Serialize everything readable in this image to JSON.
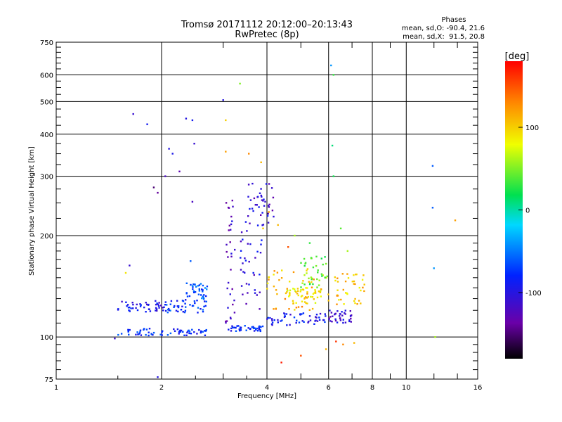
{
  "chart_data": {
    "type": "scatter",
    "title": "Tromsø 20171112 20:12:00–20:13:43",
    "subtitle": "RwPretec (8p)",
    "xlabel": "Frequency [MHz]",
    "ylabel": "Stationary phase Virtual Height [km]",
    "xscale": "log",
    "yscale": "log",
    "xlim": [
      1,
      16
    ],
    "ylim": [
      75,
      750
    ],
    "xticks": [
      1,
      2,
      4,
      6,
      8,
      10,
      16
    ],
    "yticks": [
      75,
      100,
      200,
      300,
      400,
      500,
      600,
      750
    ],
    "grid": true,
    "phases_title": "Phases",
    "phases_stats": [
      "mean, sd,O: -90.4, 21.6",
      "mean, sd,X:  91.5, 20.8"
    ],
    "colorbar": {
      "label": "[deg]",
      "range": [
        -180,
        180
      ],
      "ticks": [
        100,
        0,
        -100
      ],
      "colormap": "rainbow"
    },
    "trace_ranges": [
      {
        "x": [
          1.5,
          2.05
        ],
        "y": [
          118,
          128
        ],
        "phase": -95
      },
      {
        "x": [
          1.5,
          2.7
        ],
        "y": [
          101,
          106
        ],
        "phase": -80
      },
      {
        "x": [
          2.05,
          2.7
        ],
        "y": [
          118,
          130
        ],
        "phase": -75
      },
      {
        "x": [
          2.35,
          2.7
        ],
        "y": [
          130,
          145
        ],
        "phase": -60
      },
      {
        "x": [
          3.1,
          3.9
        ],
        "y": [
          104,
          108
        ],
        "phase": -85
      },
      {
        "x": [
          3.05,
          3.25
        ],
        "y": [
          110,
          280
        ],
        "phase": -115
      },
      {
        "x": [
          3.35,
          3.9
        ],
        "y": [
          120,
          220
        ],
        "phase": -105
      },
      {
        "x": [
          3.5,
          4.2
        ],
        "y": [
          215,
          290
        ],
        "phase": -110
      },
      {
        "x": [
          4.0,
          6.0
        ],
        "y": [
          108,
          118
        ],
        "phase": -90
      },
      {
        "x": [
          4.0,
          5.5
        ],
        "y": [
          120,
          160
        ],
        "phase": 110
      },
      {
        "x": [
          4.5,
          6.0
        ],
        "y": [
          126,
          140
        ],
        "phase": 90
      },
      {
        "x": [
          5.0,
          6.0
        ],
        "y": [
          140,
          175
        ],
        "phase": 45
      },
      {
        "x": [
          6.2,
          7.6
        ],
        "y": [
          125,
          155
        ],
        "phase": 105
      },
      {
        "x": [
          6.0,
          7.0
        ],
        "y": [
          110,
          120
        ],
        "phase": -110
      }
    ],
    "points": [
      {
        "x": 1.66,
        "y": 459,
        "phase": -110
      },
      {
        "x": 1.82,
        "y": 428,
        "phase": -90
      },
      {
        "x": 1.9,
        "y": 278,
        "phase": -150
      },
      {
        "x": 1.95,
        "y": 268,
        "phase": -140
      },
      {
        "x": 2.05,
        "y": 300,
        "phase": -120
      },
      {
        "x": 2.1,
        "y": 362,
        "phase": -100
      },
      {
        "x": 2.15,
        "y": 350,
        "phase": -95
      },
      {
        "x": 2.25,
        "y": 310,
        "phase": -130
      },
      {
        "x": 2.35,
        "y": 445,
        "phase": -100
      },
      {
        "x": 2.45,
        "y": 440,
        "phase": -90
      },
      {
        "x": 2.48,
        "y": 375,
        "phase": -110
      },
      {
        "x": 2.45,
        "y": 252,
        "phase": -120
      },
      {
        "x": 2.42,
        "y": 168,
        "phase": -60
      },
      {
        "x": 1.62,
        "y": 163,
        "phase": -110
      },
      {
        "x": 1.58,
        "y": 155,
        "phase": 90
      },
      {
        "x": 3.0,
        "y": 505,
        "phase": -100
      },
      {
        "x": 3.05,
        "y": 440,
        "phase": 100
      },
      {
        "x": 3.35,
        "y": 565,
        "phase": 50
      },
      {
        "x": 3.05,
        "y": 355,
        "phase": 120
      },
      {
        "x": 3.55,
        "y": 350,
        "phase": 130
      },
      {
        "x": 3.85,
        "y": 330,
        "phase": 110
      },
      {
        "x": 4.05,
        "y": 235,
        "phase": 120
      },
      {
        "x": 3.9,
        "y": 210,
        "phase": 100
      },
      {
        "x": 4.3,
        "y": 215,
        "phase": 110
      },
      {
        "x": 4.6,
        "y": 185,
        "phase": 150
      },
      {
        "x": 4.8,
        "y": 200,
        "phase": 60
      },
      {
        "x": 5.3,
        "y": 190,
        "phase": 30
      },
      {
        "x": 5.9,
        "y": 165,
        "phase": 50
      },
      {
        "x": 6.1,
        "y": 640,
        "phase": -40
      },
      {
        "x": 6.2,
        "y": 600,
        "phase": 30
      },
      {
        "x": 6.15,
        "y": 370,
        "phase": 10
      },
      {
        "x": 6.2,
        "y": 300,
        "phase": 20
      },
      {
        "x": 6.5,
        "y": 210,
        "phase": 40
      },
      {
        "x": 6.8,
        "y": 180,
        "phase": 60
      },
      {
        "x": 6.6,
        "y": 95,
        "phase": 130
      },
      {
        "x": 6.3,
        "y": 97,
        "phase": 160
      },
      {
        "x": 5.9,
        "y": 92,
        "phase": 110
      },
      {
        "x": 5.0,
        "y": 88,
        "phase": 150
      },
      {
        "x": 4.4,
        "y": 84,
        "phase": 170
      },
      {
        "x": 7.1,
        "y": 96,
        "phase": 110
      },
      {
        "x": 11.9,
        "y": 322,
        "phase": -60
      },
      {
        "x": 11.9,
        "y": 242,
        "phase": -60
      },
      {
        "x": 13.8,
        "y": 222,
        "phase": 120
      },
      {
        "x": 12.0,
        "y": 160,
        "phase": -40
      },
      {
        "x": 12.1,
        "y": 100,
        "phase": 60
      },
      {
        "x": 1.47,
        "y": 99,
        "phase": -110
      },
      {
        "x": 1.95,
        "y": 76,
        "phase": -100
      }
    ]
  }
}
